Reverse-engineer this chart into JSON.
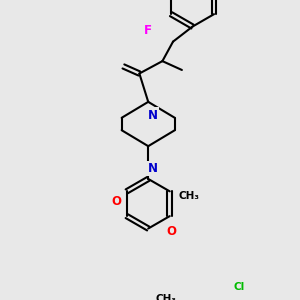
{
  "bg_color": "#e8e8e8",
  "figsize": [
    3.0,
    3.0
  ],
  "dpi": 100,
  "bond_color": "#000000",
  "bond_lw": 1.5,
  "atom_colors": {
    "O": "#FF0000",
    "N": "#0000CC",
    "Cl": "#00BB00",
    "F": "#FF00FF",
    "C": "#000000"
  },
  "font_size": 8.5,
  "font_size_small": 7.5
}
